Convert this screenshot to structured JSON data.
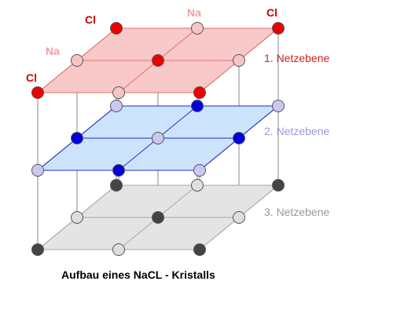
{
  "labels": {
    "cl_top_left": "Cl",
    "cl_top_right": "Cl",
    "cl_front_left": "Cl",
    "na_top": "Na",
    "na_left": "Na"
  },
  "planes": [
    {
      "label": "1. Netzebene",
      "fill": "#f9c8c8",
      "edge": "#e07070",
      "text_color": "#cc2222"
    },
    {
      "label": "2. Netzebene",
      "fill": "#cce4fb",
      "edge": "#2a2acc",
      "text_color": "#9999dd"
    },
    {
      "label": "3. Netzebene",
      "fill": "#e4e4e4",
      "edge": "#a8a8a8",
      "text_color": "#999999"
    }
  ],
  "caption": "Aufbau eines NaCL - Kristalls",
  "colors": {
    "cl_top": "#ee0000",
    "na_top": "#f7c4c4",
    "cl_middle": "#0000dd",
    "na_middle": "#c8c8f0",
    "dark_bottom": "#444444",
    "light_bottom": "#dedede",
    "vertical_edges": "#888888"
  }
}
